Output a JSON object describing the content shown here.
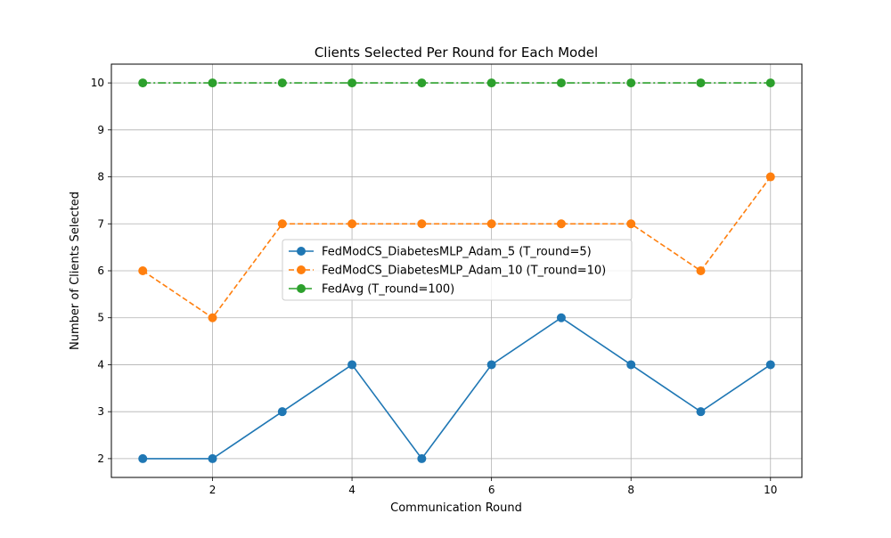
{
  "chart_data": {
    "type": "line",
    "title": "Clients Selected Per Round for Each Model",
    "xlabel": "Communication Round",
    "ylabel": "Number of Clients Selected",
    "x": [
      1,
      2,
      3,
      4,
      5,
      6,
      7,
      8,
      9,
      10
    ],
    "xlim": [
      0.55,
      10.45
    ],
    "ylim": [
      1.6,
      10.4
    ],
    "xticks": [
      2,
      4,
      6,
      8,
      10
    ],
    "yticks": [
      2,
      3,
      4,
      5,
      6,
      7,
      8,
      9,
      10
    ],
    "grid": true,
    "legend_position": "center",
    "series": [
      {
        "name": "FedModCS_DiabetesMLP_Adam_5 (T_round=5)",
        "values": [
          2,
          2,
          3,
          4,
          2,
          4,
          5,
          4,
          3,
          4
        ],
        "color": "#1f77b4",
        "line_style": "solid",
        "marker": "circle"
      },
      {
        "name": "FedModCS_DiabetesMLP_Adam_10 (T_round=10)",
        "values": [
          6,
          5,
          7,
          7,
          7,
          7,
          7,
          7,
          6,
          8
        ],
        "color": "#ff7f0e",
        "line_style": "dashed",
        "marker": "circle"
      },
      {
        "name": "FedAvg (T_round=100)",
        "values": [
          10,
          10,
          10,
          10,
          10,
          10,
          10,
          10,
          10,
          10
        ],
        "color": "#2ca02c",
        "line_style": "dashdot",
        "marker": "circle"
      }
    ]
  }
}
